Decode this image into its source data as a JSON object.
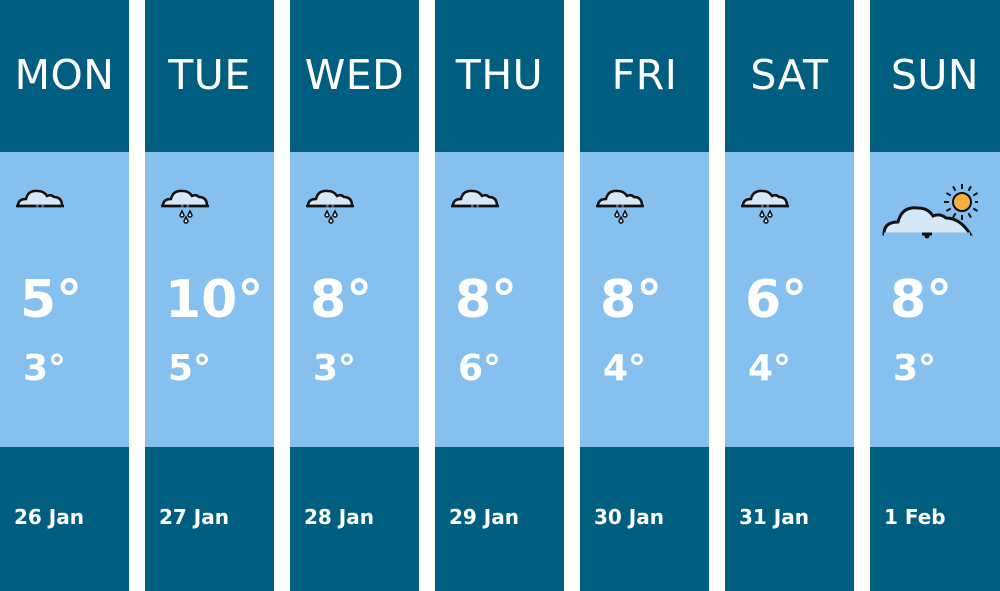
{
  "forecast": [
    {
      "day": "MON",
      "icon": "cloud-icon",
      "high": "5°",
      "low": "3°",
      "date": "26 Jan"
    },
    {
      "day": "TUE",
      "icon": "rain-cloud-icon",
      "high": "10°",
      "low": "5°",
      "date": "27 Jan"
    },
    {
      "day": "WED",
      "icon": "rain-cloud-icon",
      "high": "8°",
      "low": "3°",
      "date": "28 Jan"
    },
    {
      "day": "THU",
      "icon": "cloud-icon",
      "high": "8°",
      "low": "6°",
      "date": "29 Jan"
    },
    {
      "day": "FRI",
      "icon": "rain-cloud-icon",
      "high": "8°",
      "low": "4°",
      "date": "30 Jan"
    },
    {
      "day": "SAT",
      "icon": "rain-cloud-icon",
      "high": "6°",
      "low": "4°",
      "date": "31 Jan"
    },
    {
      "day": "SUN",
      "icon": "sun-cloud-icon",
      "high": "8°",
      "low": "3°",
      "date": "1 Feb"
    }
  ],
  "colors": {
    "header": "#005f80",
    "body": "#86c0ee",
    "sun": "#f5b041",
    "cloud": "#d4e8f8"
  }
}
